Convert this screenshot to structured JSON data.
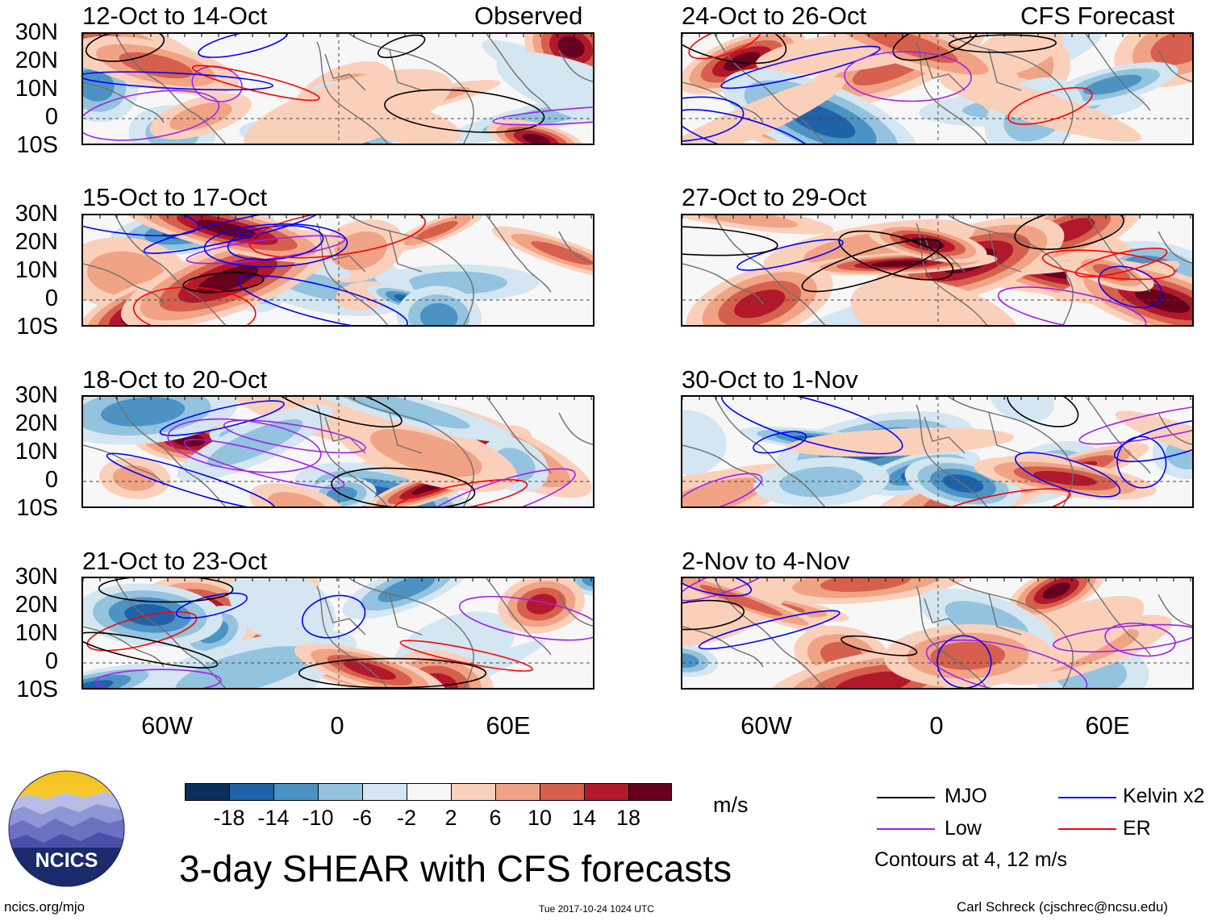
{
  "panels": {
    "left": [
      {
        "title": "12-Oct to 14-Oct",
        "tag": "Observed"
      },
      {
        "title": "15-Oct to 17-Oct",
        "tag": ""
      },
      {
        "title": "18-Oct to 20-Oct",
        "tag": ""
      },
      {
        "title": "21-Oct to 23-Oct",
        "tag": ""
      }
    ],
    "right": [
      {
        "title": "24-Oct to 26-Oct",
        "tag": "CFS Forecast"
      },
      {
        "title": "27-Oct to 29-Oct",
        "tag": ""
      },
      {
        "title": "30-Oct to 1-Nov",
        "tag": ""
      },
      {
        "title": "2-Nov to 4-Nov",
        "tag": ""
      }
    ]
  },
  "axes": {
    "lat_labels": [
      "30N",
      "20N",
      "10N",
      "0",
      "10S"
    ],
    "lon_labels": [
      "60W",
      "0",
      "60E"
    ]
  },
  "colorbar": {
    "colors": [
      "#0b2f5c",
      "#1f62a8",
      "#4c93c4",
      "#93c3de",
      "#d3e6f1",
      "#f7f7f7",
      "#fbd0bb",
      "#f1a385",
      "#d6604d",
      "#b2182b",
      "#67001f"
    ],
    "labels": [
      "-18",
      "-14",
      "-10",
      "-6",
      "-2",
      "2",
      "6",
      "10",
      "14",
      "18"
    ],
    "units": "m/s"
  },
  "legend": {
    "items": [
      {
        "label": "MJO",
        "color": "#000000"
      },
      {
        "label": "Kelvin x2",
        "color": "#0000ff"
      },
      {
        "label": "Low",
        "color": "#a020f0"
      },
      {
        "label": "ER",
        "color": "#ff0000"
      }
    ],
    "note": "Contours at 4, 12 m/s"
  },
  "main_title": "3-day SHEAR with CFS forecasts",
  "logo_text": "NCICS",
  "footer": {
    "url": "ncics.org/mjo",
    "timestamp": "Tue 2017-10-24 1024 UTC",
    "credit": "Carl Schreck (cjschrec@ncsu.edu)"
  }
}
